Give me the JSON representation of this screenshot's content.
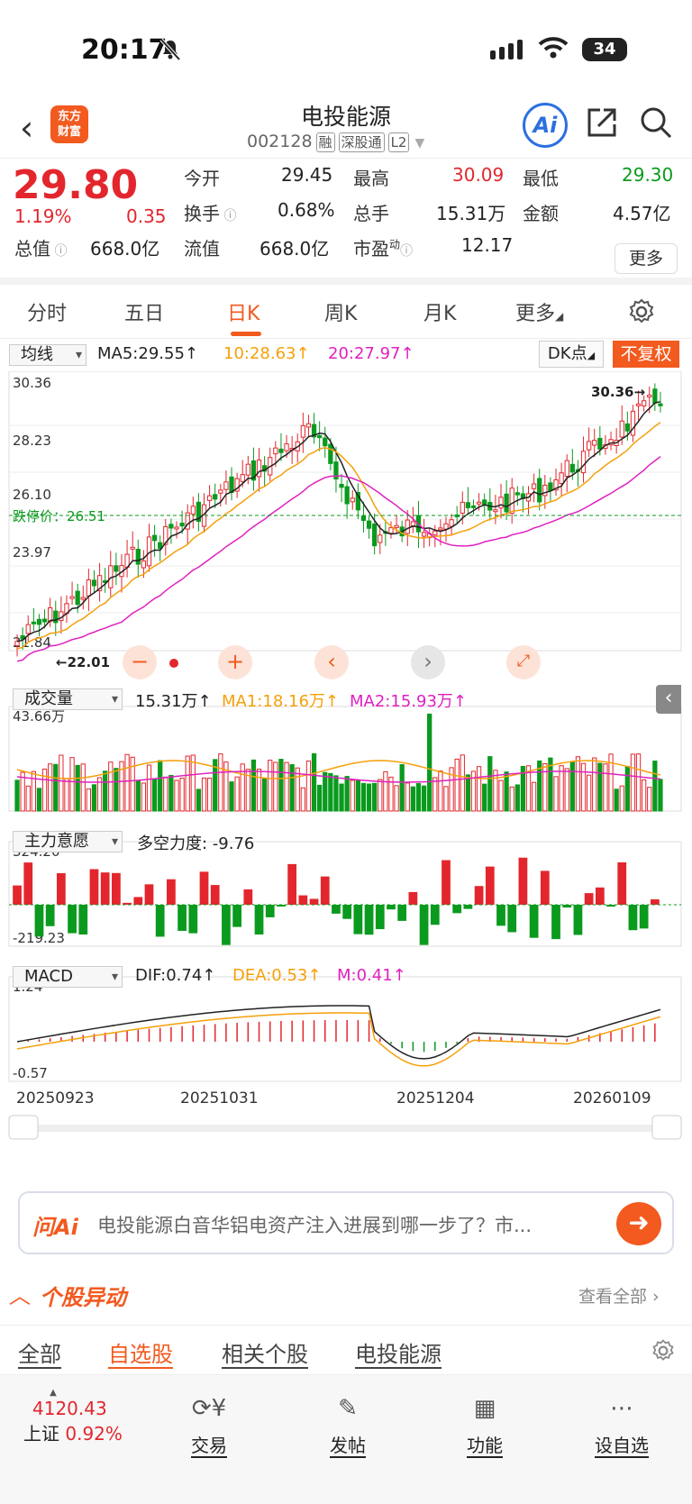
{
  "status": {
    "time": "20:17",
    "battery": "34"
  },
  "header": {
    "back": "‹",
    "logo_line1": "东方",
    "logo_line2": "财富",
    "title": "电投能源",
    "code": "002128",
    "tags": [
      "融",
      "深股通",
      "L2"
    ],
    "ai_label": "Ai"
  },
  "quote": {
    "price": "29.80",
    "change_pct": "1.19%",
    "change": "0.35",
    "open_label": "今开",
    "open": "29.45",
    "high_label": "最高",
    "high": "30.09",
    "low_label": "最低",
    "low": "29.30",
    "turnover_label": "换手",
    "turnover": "0.68%",
    "volume_label": "总手",
    "volume": "15.31万",
    "amount_label": "金额",
    "amount": "4.57亿",
    "mcap_label": "总值",
    "mcap": "668.0亿",
    "float_label": "流值",
    "float_cap": "668.0亿",
    "pe_label": "市盈",
    "pe_sup": "动",
    "pe": "12.17",
    "more": "更多"
  },
  "tabs": [
    "分时",
    "五日",
    "日K",
    "周K",
    "月K",
    "更多"
  ],
  "kline": {
    "ma_select": "均线",
    "ma5": "MA5:29.55↑",
    "ma10": "10:28.63↑",
    "ma20": "20:27.97↑",
    "dk": "DK点",
    "fq": "不复权",
    "y_labels": [
      "30.36",
      "28.23",
      "26.10",
      "23.97",
      "21.84"
    ],
    "max_label": "30.36",
    "min_label": "←22.01",
    "limit_price": "跌停价：26.51"
  },
  "volume": {
    "select": "成交量",
    "val": "15.31万↑",
    "ma1": "MA1:18.16万↑",
    "ma2": "MA2:15.93万↑",
    "y_max": "43.66万"
  },
  "force": {
    "select": "主力意愿",
    "val": "多空力度: -9.76",
    "y_max": "324.20",
    "y_min": "-219.23"
  },
  "macd": {
    "select": "MACD",
    "dif": "DIF:0.74↑",
    "dea": "DEA:0.53↑",
    "m": "M:0.41↑",
    "y_max": "1.24",
    "y_min": "-0.57"
  },
  "dates": [
    "20250923",
    "20251031",
    "20251204",
    "20260109"
  ],
  "ai": {
    "logo": "问Ai",
    "text": "电投能源白音华铝电资产注入进展到哪一步了？市..."
  },
  "movement": {
    "title": "个股异动",
    "all": "查看全部"
  },
  "subtabs": [
    "全部",
    "自选股",
    "相关个股",
    "电投能源"
  ],
  "bottom": {
    "index_value": "4120.43",
    "index_name": "上证",
    "index_pct": "0.92%",
    "items": [
      "交易",
      "发帖",
      "功能",
      "设自选"
    ]
  },
  "colors": {
    "up": "#e3262d",
    "down": "#0a9a1e",
    "accent": "#f25a1f",
    "ma10": "#f5a00a",
    "ma20": "#e020c0"
  }
}
